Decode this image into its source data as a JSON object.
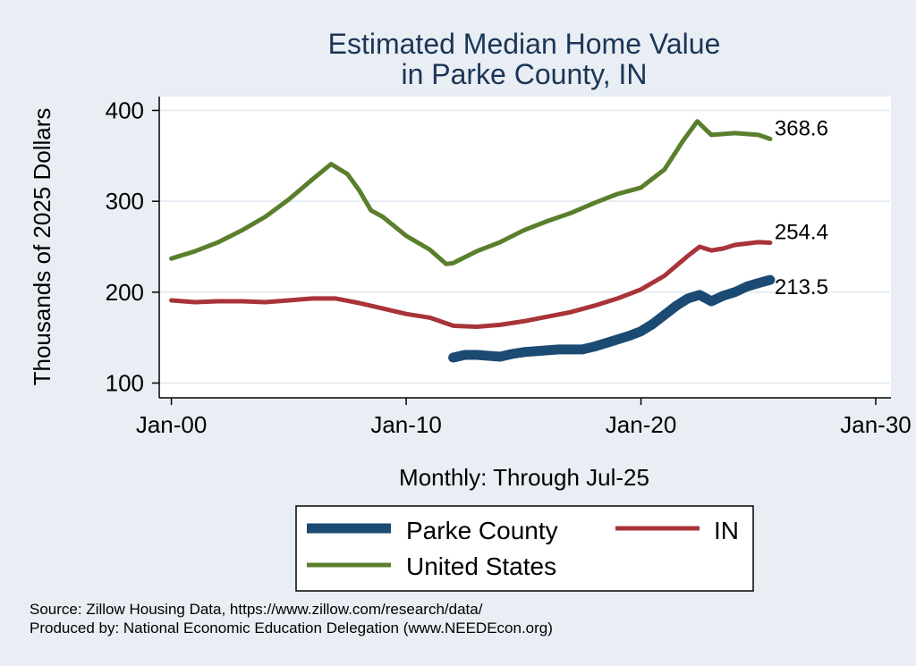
{
  "chart_data": {
    "type": "line",
    "title": [
      "Estimated Median Home Value",
      "in Parke County, IN"
    ],
    "ylabel": "Thousands of 2025 Dollars",
    "xlabel": "Monthly: Through Jul-25",
    "x_unit": "year",
    "xlim": [
      2000,
      2030
    ],
    "ylim": [
      95,
      415
    ],
    "yticks": [
      100,
      200,
      300,
      400
    ],
    "xticks": [
      {
        "value": 2000,
        "label": "Jan-00"
      },
      {
        "value": 2010,
        "label": "Jan-10"
      },
      {
        "value": 2020,
        "label": "Jan-20"
      },
      {
        "value": 2030,
        "label": "Jan-30"
      }
    ],
    "grid": true,
    "series": [
      {
        "name": "Parke County",
        "color": "#1b4a72",
        "end_label": "213.5",
        "x": [
          2012.0,
          2012.5,
          2013.0,
          2013.5,
          2014.0,
          2014.5,
          2015.0,
          2015.5,
          2016.0,
          2016.5,
          2017.0,
          2017.5,
          2018.0,
          2018.5,
          2019.0,
          2019.5,
          2020.0,
          2020.5,
          2021.0,
          2021.5,
          2022.0,
          2022.5,
          2023.0,
          2023.5,
          2024.0,
          2024.5,
          2025.0,
          2025.5
        ],
        "values": [
          128,
          131,
          131,
          130,
          129,
          132,
          134,
          135,
          136,
          137,
          137,
          137,
          140,
          144,
          148,
          152,
          157,
          165,
          175,
          185,
          193,
          197,
          190,
          196,
          200,
          206,
          210,
          213.5
        ]
      },
      {
        "name": "IN",
        "color": "#a8343a",
        "end_label": "254.4",
        "x": [
          2000.0,
          2001.0,
          2002.0,
          2003.0,
          2004.0,
          2005.0,
          2006.0,
          2007.0,
          2008.0,
          2009.0,
          2010.0,
          2011.0,
          2012.0,
          2013.0,
          2014.0,
          2015.0,
          2016.0,
          2017.0,
          2018.0,
          2019.0,
          2020.0,
          2021.0,
          2022.0,
          2022.5,
          2023.0,
          2023.5,
          2024.0,
          2025.0,
          2025.5
        ],
        "values": [
          191,
          189,
          190,
          190,
          189,
          191,
          193,
          193,
          188,
          182,
          176,
          172,
          163,
          162,
          164,
          168,
          173,
          178,
          185,
          193,
          203,
          218,
          240,
          250,
          246,
          248,
          252,
          255,
          254.4
        ]
      },
      {
        "name": "United States",
        "color": "#5a7f2c",
        "end_label": "368.6",
        "x": [
          2000.0,
          2001.0,
          2002.0,
          2003.0,
          2004.0,
          2005.0,
          2006.0,
          2006.8,
          2007.5,
          2008.0,
          2008.5,
          2009.0,
          2010.0,
          2011.0,
          2011.7,
          2012.0,
          2013.0,
          2014.0,
          2015.0,
          2016.0,
          2017.0,
          2018.0,
          2019.0,
          2020.0,
          2021.0,
          2021.8,
          2022.4,
          2022.8,
          2023.0,
          2023.5,
          2024.0,
          2025.0,
          2025.5
        ],
        "values": [
          237,
          245,
          255,
          268,
          283,
          302,
          324,
          341,
          330,
          312,
          290,
          283,
          262,
          247,
          231,
          232,
          245,
          255,
          268,
          278,
          287,
          298,
          308,
          315,
          335,
          367,
          388,
          378,
          373,
          374,
          375,
          373,
          368.6
        ]
      }
    ]
  },
  "legend": {
    "items": [
      {
        "label": "Parke County",
        "color": "#1b4a72"
      },
      {
        "label": "IN",
        "color": "#a8343a"
      },
      {
        "label": "United States",
        "color": "#5a7f2c"
      }
    ]
  },
  "source": {
    "line1": "Source: Zillow Housing Data, https://www.zillow.com/research/data/",
    "line2": "Produced by: National Economic Education Delegation (www.NEEDEcon.org)"
  }
}
